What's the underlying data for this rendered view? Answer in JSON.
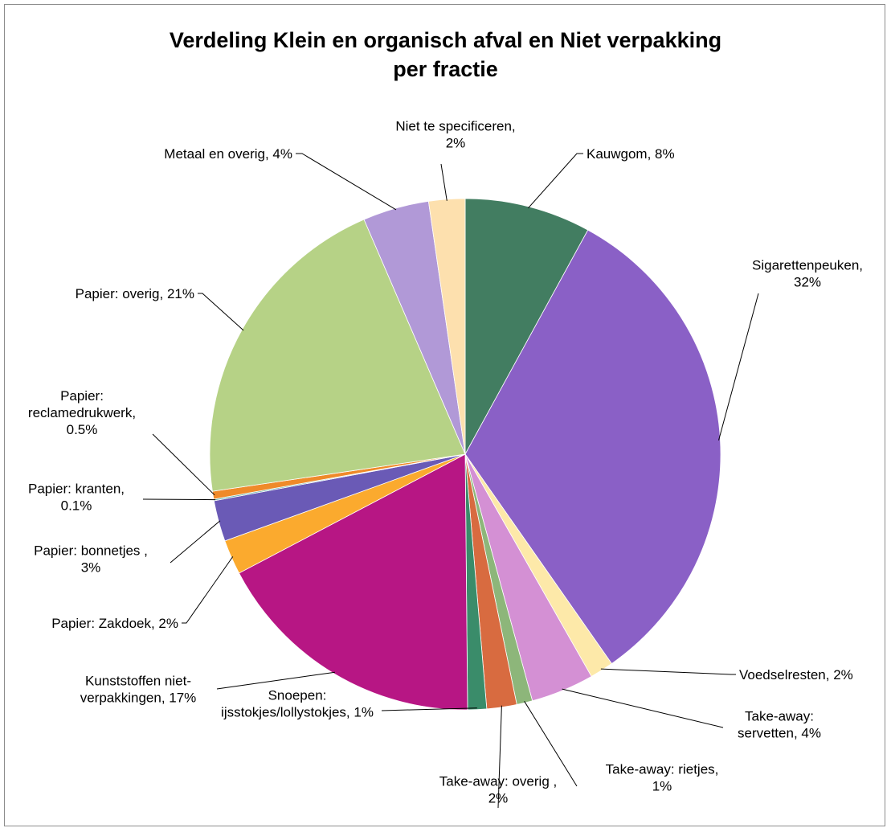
{
  "chart_data": {
    "type": "pie",
    "title_lines": [
      "Verdeling Klein en organisch afval en Niet verpakking",
      "per fractie"
    ],
    "start_angle_deg": 0,
    "direction": "clockwise",
    "slices": [
      {
        "name": "Kauwgom",
        "value": 8.0,
        "color": "#427d61",
        "label_lines": [
          "Kauwgom, 8%"
        ]
      },
      {
        "name": "Sigarettenpeuken",
        "value": 32.4,
        "color": "#8a60c6",
        "label_lines": [
          "Sigarettenpeuken,",
          "32%"
        ]
      },
      {
        "name": "Voedselresten",
        "value": 1.5,
        "color": "#fde9a9",
        "label_lines": [
          "Voedselresten, 2%"
        ]
      },
      {
        "name": "Take-away: servetten",
        "value": 4.0,
        "color": "#d490d4",
        "label_lines": [
          "Take-away:",
          "servetten, 4%"
        ]
      },
      {
        "name": "Take-away: rietjes",
        "value": 1.0,
        "color": "#8db67a",
        "label_lines": [
          "Take-away: rietjes,",
          "1%"
        ]
      },
      {
        "name": "Take-away: overig",
        "value": 1.9,
        "color": "#d86b40",
        "label_lines": [
          "Take-away: overig ,",
          "2%"
        ]
      },
      {
        "name": "Snoepen: ijsstokjes/lollystokjes",
        "value": 1.2,
        "color": "#3a8c6a",
        "label_lines": [
          "Snoepen:",
          "ijsstokjes/lollystokjes, 1%"
        ]
      },
      {
        "name": "Kunststoffen niet-verpakkingen",
        "value": 17.5,
        "color": "#b71684",
        "label_lines": [
          "Kunststoffen niet-",
          "verpakkingen, 17%"
        ]
      },
      {
        "name": "Papier: Zakdoek",
        "value": 2.2,
        "color": "#fbaa2e",
        "label_lines": [
          "Papier: Zakdoek, 2%"
        ]
      },
      {
        "name": "Papier: bonnetjes",
        "value": 2.6,
        "color": "#6a5ab6",
        "label_lines": [
          "Papier: bonnetjes ,",
          "3%"
        ]
      },
      {
        "name": "Papier: kranten",
        "value": 0.1,
        "color": "#67b3ae",
        "label_lines": [
          "Papier: kranten,",
          "0.1%"
        ]
      },
      {
        "name": "Papier: reclamedrukwerk",
        "value": 0.5,
        "color": "#ef8a2a",
        "label_lines": [
          "Papier:",
          "reclamedrukwerk,",
          "0.5%"
        ]
      },
      {
        "name": "Papier: overig",
        "value": 20.9,
        "color": "#b6d286",
        "label_lines": [
          "Papier: overig, 21%"
        ]
      },
      {
        "name": "Metaal en overig",
        "value": 4.2,
        "color": "#b199d7",
        "label_lines": [
          "Metaal en overig, 4%"
        ]
      },
      {
        "name": "Niet te specificeren",
        "value": 2.3,
        "color": "#fde0ae",
        "label_lines": [
          "Niet te specificeren,",
          "2%"
        ]
      }
    ]
  }
}
